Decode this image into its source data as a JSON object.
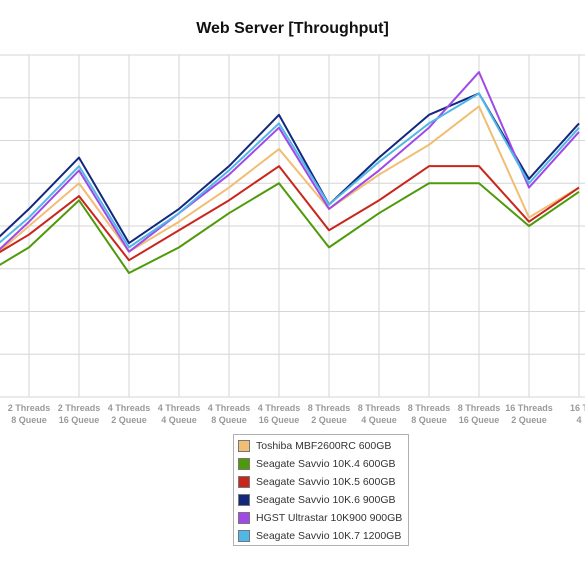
{
  "chart_data": {
    "type": "line",
    "title": "Web Server [Throughput]",
    "xlabel": "",
    "ylabel": "",
    "grid": true,
    "legend_position": "bottom-center",
    "categories": [
      [
        "Threads",
        "Queue"
      ],
      [
        "2 Threads",
        "8 Queue"
      ],
      [
        "2 Threads",
        "16 Queue"
      ],
      [
        "4 Threads",
        "2 Queue"
      ],
      [
        "4 Threads",
        "4 Queue"
      ],
      [
        "4 Threads",
        "8 Queue"
      ],
      [
        "4 Threads",
        "16 Queue"
      ],
      [
        "8 Threads",
        "2 Queue"
      ],
      [
        "8 Threads",
        "4 Queue"
      ],
      [
        "8 Threads",
        "8 Queue"
      ],
      [
        "8 Threads",
        "16 Queue"
      ],
      [
        "16 Threads",
        "2 Queue"
      ],
      [
        "16 T",
        "4"
      ]
    ],
    "ylim": [
      0,
      8
    ],
    "series": [
      {
        "name": "Toshiba MBF2600RC 600GB",
        "color": "#f0be74",
        "values": [
          3.0,
          4.0,
          5.0,
          3.4,
          4.1,
          4.9,
          5.8,
          4.4,
          5.2,
          5.9,
          6.8,
          4.2,
          4.9
        ]
      },
      {
        "name": "Seagate Savvio 10K.4 600GB",
        "color": "#4f9a0a",
        "values": [
          2.8,
          3.5,
          4.6,
          2.9,
          3.5,
          4.3,
          5.0,
          3.5,
          4.3,
          5.0,
          5.0,
          4.0,
          4.8
        ]
      },
      {
        "name": "Seagate Savvio 10K.5 600GB",
        "color": "#c9261c",
        "values": [
          3.1,
          3.8,
          4.7,
          3.2,
          3.9,
          4.6,
          5.4,
          3.9,
          4.6,
          5.4,
          5.4,
          4.1,
          4.9
        ]
      },
      {
        "name": "Seagate Savvio 10K.6 900GB",
        "color": "#13287c",
        "values": [
          3.3,
          4.4,
          5.6,
          3.6,
          4.4,
          5.4,
          6.6,
          4.5,
          5.6,
          6.6,
          7.1,
          5.1,
          6.4
        ]
      },
      {
        "name": "HGST Ultrastar 10K900 900GB",
        "color": "#a048e8",
        "values": [
          3.0,
          4.1,
          5.3,
          3.4,
          4.3,
          5.2,
          6.3,
          4.4,
          5.3,
          6.3,
          7.6,
          4.9,
          6.2
        ]
      },
      {
        "name": "Seagate Savvio 10K.7 1200GB",
        "color": "#4fb8e8",
        "values": [
          3.2,
          4.2,
          5.4,
          3.5,
          4.3,
          5.3,
          6.4,
          4.5,
          5.5,
          6.4,
          7.1,
          5.0,
          6.3
        ]
      }
    ]
  }
}
